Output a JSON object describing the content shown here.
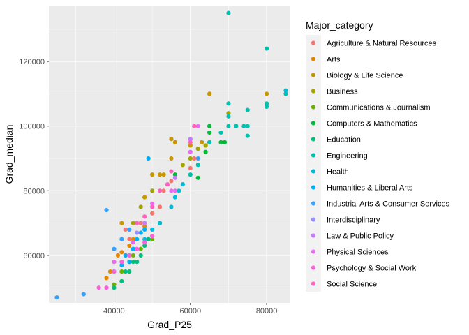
{
  "chart_data": {
    "type": "scatter",
    "xlabel": "Grad_P25",
    "ylabel": "Grad_median",
    "xlim": [
      22900,
      86200
    ],
    "ylim": [
      45300,
      137300
    ],
    "x_ticks": [
      40000,
      60000,
      80000
    ],
    "y_ticks": [
      60000,
      80000,
      100000,
      120000
    ],
    "x_tick_labels": [
      "40000",
      "60000",
      "80000"
    ],
    "y_tick_labels": [
      "60000",
      "80000",
      "100000",
      "120000"
    ],
    "grid": true,
    "legend": {
      "title": "Major_category",
      "position": "right"
    },
    "series": [
      {
        "name": "Agriculture & Natural Resources",
        "color": "#F8766D",
        "points": [
          [
            43000,
            68000
          ],
          [
            44000,
            65000
          ],
          [
            47000,
            70000
          ],
          [
            50000,
            73000
          ],
          [
            52000,
            75000
          ],
          [
            53000,
            80000
          ],
          [
            55000,
            83000
          ],
          [
            60000,
            87000
          ],
          [
            61000,
            90000
          ]
        ]
      },
      {
        "name": "Arts",
        "color": "#E58700",
        "points": [
          [
            38000,
            53000
          ],
          [
            39000,
            55000
          ],
          [
            40000,
            58000
          ],
          [
            41000,
            60000
          ],
          [
            42000,
            61000
          ],
          [
            44000,
            63000
          ],
          [
            45000,
            65000
          ],
          [
            48000,
            69000
          ]
        ]
      },
      {
        "name": "Biology & Life Science",
        "color": "#C99800",
        "points": [
          [
            42000,
            70000
          ],
          [
            48000,
            78000
          ],
          [
            50000,
            85000
          ],
          [
            52000,
            85000
          ],
          [
            53000,
            85000
          ],
          [
            55000,
            90000
          ],
          [
            55000,
            96000
          ],
          [
            56000,
            95000
          ],
          [
            60000,
            94000
          ],
          [
            63000,
            95000
          ],
          [
            65000,
            110000
          ],
          [
            80000,
            110000
          ]
        ]
      },
      {
        "name": "Business",
        "color": "#A3A500",
        "points": [
          [
            45000,
            70000
          ],
          [
            47000,
            75000
          ],
          [
            50000,
            80000
          ],
          [
            58000,
            88000
          ],
          [
            60000,
            90000
          ],
          [
            62000,
            93000
          ],
          [
            64000,
            94000
          ],
          [
            65000,
            95000
          ],
          [
            70000,
            104000
          ]
        ]
      },
      {
        "name": "Communications & Journalism",
        "color": "#6BB100",
        "points": [
          [
            40000,
            51000
          ],
          [
            42000,
            55000
          ],
          [
            44000,
            58000
          ],
          [
            45000,
            60000
          ],
          [
            47000,
            62000
          ],
          [
            50000,
            65000
          ]
        ]
      },
      {
        "name": "Computers & Mathematics",
        "color": "#00BA38",
        "points": [
          [
            56000,
            85000
          ],
          [
            62000,
            84000
          ],
          [
            64000,
            92000
          ],
          [
            65000,
            100000
          ],
          [
            65000,
            98000
          ],
          [
            68000,
            95000
          ],
          [
            69000,
            95000
          ]
        ]
      },
      {
        "name": "Education",
        "color": "#00BF7D",
        "points": [
          [
            40000,
            50000
          ],
          [
            42000,
            52000
          ],
          [
            43000,
            55000
          ],
          [
            44000,
            55000
          ],
          [
            45000,
            58000
          ],
          [
            46000,
            58000
          ],
          [
            47000,
            60000
          ],
          [
            48000,
            63000
          ],
          [
            49000,
            65000
          ],
          [
            52000,
            70000
          ]
        ]
      },
      {
        "name": "Engineering",
        "color": "#00C0AF",
        "points": [
          [
            60000,
            85000
          ],
          [
            62000,
            88000
          ],
          [
            65000,
            95000
          ],
          [
            68000,
            98000
          ],
          [
            70000,
            100000
          ],
          [
            70000,
            103000
          ],
          [
            70000,
            107000
          ],
          [
            72000,
            100000
          ],
          [
            74000,
            100000
          ],
          [
            75000,
            97000
          ],
          [
            75000,
            100000
          ],
          [
            75000,
            105000
          ],
          [
            80000,
            106000
          ],
          [
            80000,
            107000
          ],
          [
            80000,
            124000
          ],
          [
            70000,
            135000
          ],
          [
            85000,
            110000
          ]
        ]
      },
      {
        "name": "Health",
        "color": "#00BCD8",
        "points": [
          [
            43000,
            60000
          ],
          [
            45000,
            62000
          ],
          [
            48000,
            65000
          ],
          [
            50000,
            68000
          ],
          [
            52000,
            70000
          ],
          [
            55000,
            75000
          ],
          [
            56000,
            78000
          ],
          [
            57000,
            80000
          ],
          [
            58000,
            82000
          ],
          [
            85000,
            111000
          ]
        ]
      },
      {
        "name": "Humanities & Liberal Arts",
        "color": "#00B0F6",
        "points": [
          [
            40000,
            55000
          ],
          [
            42000,
            57000
          ],
          [
            43000,
            60000
          ],
          [
            44000,
            58000
          ],
          [
            45000,
            62000
          ],
          [
            46000,
            65000
          ],
          [
            47000,
            67000
          ],
          [
            48000,
            68000
          ],
          [
            49000,
            90000
          ]
        ]
      },
      {
        "name": "Industrial Arts & Consumer Services",
        "color": "#35A2FF",
        "points": [
          [
            25000,
            47000
          ],
          [
            32000,
            48000
          ],
          [
            38000,
            74000
          ],
          [
            40000,
            62000
          ],
          [
            42000,
            65000
          ],
          [
            44000,
            68000
          ],
          [
            62000,
            90000
          ]
        ]
      },
      {
        "name": "Interdisciplinary",
        "color": "#9590FF",
        "points": [
          [
            46000,
            67000
          ]
        ]
      },
      {
        "name": "Law & Public Policy",
        "color": "#C77CFF",
        "points": [
          [
            48000,
            70000
          ],
          [
            56000,
            84000
          ],
          [
            60000,
            96000
          ]
        ]
      },
      {
        "name": "Physical Sciences",
        "color": "#E76BF3",
        "points": [
          [
            40000,
            58000
          ],
          [
            45000,
            64000
          ],
          [
            50000,
            76000
          ],
          [
            55000,
            80000
          ],
          [
            56000,
            80000
          ],
          [
            60000,
            92000
          ],
          [
            62000,
            100000
          ]
        ]
      },
      {
        "name": "Psychology & Social Work",
        "color": "#FA62DB",
        "points": [
          [
            36000,
            50000
          ],
          [
            38000,
            50000
          ],
          [
            40000,
            55000
          ],
          [
            42000,
            58000
          ],
          [
            44000,
            60000
          ],
          [
            46000,
            62000
          ],
          [
            48000,
            64000
          ],
          [
            50000,
            66000
          ]
        ]
      },
      {
        "name": "Social Science",
        "color": "#FF62BC",
        "points": [
          [
            46000,
            70000
          ],
          [
            48000,
            72000
          ],
          [
            50000,
            75000
          ],
          [
            52000,
            80000
          ],
          [
            54000,
            82000
          ],
          [
            55000,
            86000
          ],
          [
            60000,
            95000
          ],
          [
            61000,
            100000
          ]
        ]
      }
    ]
  }
}
